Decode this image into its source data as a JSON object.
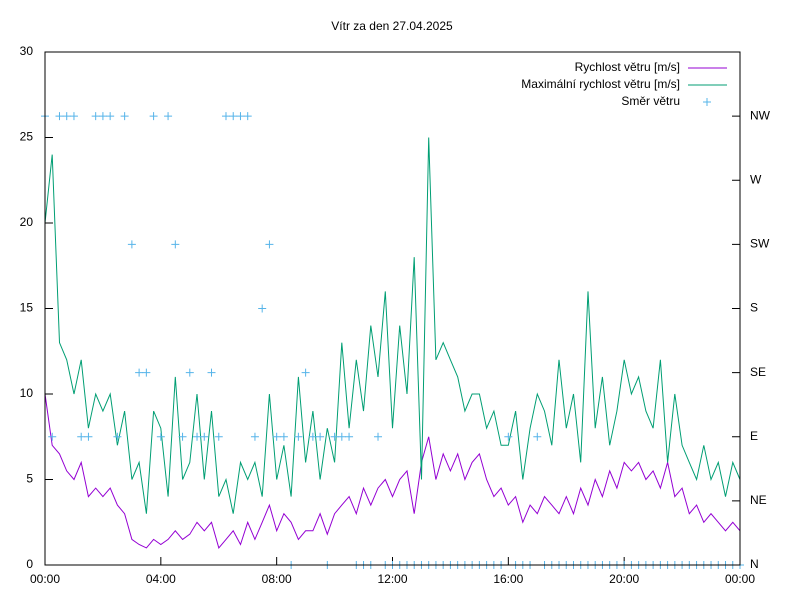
{
  "chart_data": {
    "type": "line",
    "title": "Vítr za den 27.04.2025",
    "x": [
      0,
      0.25,
      0.5,
      0.75,
      1,
      1.25,
      1.5,
      1.75,
      2,
      2.25,
      2.5,
      2.75,
      3,
      3.25,
      3.5,
      3.75,
      4,
      4.25,
      4.5,
      4.75,
      5,
      5.25,
      5.5,
      5.75,
      6,
      6.25,
      6.5,
      6.75,
      7,
      7.25,
      7.5,
      7.75,
      8,
      8.25,
      8.5,
      8.75,
      9,
      9.25,
      9.5,
      9.75,
      10,
      10.25,
      10.5,
      10.75,
      11,
      11.25,
      11.5,
      11.75,
      12,
      12.25,
      12.5,
      12.75,
      13,
      13.25,
      13.5,
      13.75,
      14,
      14.25,
      14.5,
      14.75,
      15,
      15.25,
      15.5,
      15.75,
      16,
      16.25,
      16.5,
      16.75,
      17,
      17.25,
      17.5,
      17.75,
      18,
      18.25,
      18.5,
      18.75,
      19,
      19.25,
      19.5,
      19.75,
      20,
      20.25,
      20.5,
      20.75,
      21,
      21.25,
      21.5,
      21.75,
      22,
      22.25,
      22.5,
      22.75,
      23,
      23.25,
      23.5,
      23.75,
      24
    ],
    "series": [
      {
        "name": "Rychlost větru [m/s]",
        "color": "#9400d3",
        "style": "line",
        "values": [
          10,
          7,
          6.5,
          5.5,
          5,
          6,
          4,
          4.5,
          4,
          4.5,
          3.5,
          3,
          1.5,
          1.2,
          1,
          1.5,
          1.2,
          1.5,
          2,
          1.5,
          1.8,
          2.5,
          2,
          2.5,
          1,
          1.5,
          2,
          1.2,
          2.5,
          1.5,
          2.5,
          3.5,
          2,
          3,
          2.5,
          1.5,
          2,
          2,
          3,
          1.8,
          3,
          3.5,
          4,
          3,
          4.5,
          3.5,
          4.5,
          5,
          4,
          5,
          5.5,
          3,
          6,
          7.5,
          5,
          6.5,
          5.5,
          6.5,
          5,
          6,
          6.5,
          5,
          4,
          4.5,
          3.5,
          4,
          2.5,
          3.5,
          3,
          4,
          3.5,
          3,
          4,
          3,
          4.5,
          3.5,
          5,
          4,
          5.5,
          4.5,
          6,
          5.5,
          6,
          5,
          5.5,
          4.5,
          6,
          4,
          4.5,
          3,
          3.5,
          2.5,
          3,
          2.5,
          2,
          2.5,
          2
        ]
      },
      {
        "name": "Maximální rychlost větru [m/s]",
        "color": "#009e73",
        "style": "line",
        "values": [
          20,
          24,
          13,
          12,
          10,
          12,
          8,
          10,
          9,
          10,
          7,
          9,
          5,
          6,
          3,
          9,
          8,
          4,
          11,
          5,
          6,
          10,
          5,
          9,
          4,
          5,
          3,
          6,
          5,
          6,
          4,
          10,
          5,
          7,
          4,
          11,
          6,
          9,
          5,
          8,
          6,
          13,
          8,
          12,
          9,
          14,
          11,
          16,
          8,
          14,
          10,
          18,
          5,
          25,
          12,
          13,
          12,
          11,
          9,
          10,
          10,
          8,
          9,
          7,
          7,
          9,
          5,
          8,
          10,
          9,
          7,
          12,
          8,
          10,
          6,
          16,
          8,
          11,
          7,
          9,
          12,
          10,
          11,
          9,
          8,
          12,
          6,
          10,
          7,
          6,
          5,
          7,
          5,
          6,
          4,
          6,
          5
        ]
      },
      {
        "name": "Směr větru",
        "color": "#56b4e9",
        "style": "points",
        "axis": "y2",
        "values": [
          7,
          2,
          7,
          7,
          7,
          2,
          2,
          7,
          7,
          7,
          2,
          7,
          5,
          3,
          3,
          7,
          2,
          7,
          5,
          2,
          3,
          2,
          2,
          3,
          2,
          7,
          7,
          7,
          7,
          2,
          4,
          5,
          2,
          2,
          0,
          2,
          3,
          2,
          2,
          0,
          2,
          2,
          2,
          0,
          0,
          0,
          2,
          0,
          0,
          0,
          0,
          0,
          0,
          0,
          0,
          0,
          0,
          0,
          0,
          0,
          0,
          0,
          0,
          0,
          2,
          0,
          0,
          0,
          2,
          0,
          0,
          0,
          0,
          0,
          0,
          0,
          0,
          0,
          0,
          0,
          0,
          0,
          0,
          0,
          0,
          0,
          0,
          0,
          0,
          0,
          0,
          0,
          0,
          0,
          0,
          0,
          0
        ]
      }
    ],
    "xlim": [
      0,
      24
    ],
    "xticks": [
      {
        "value": 0,
        "label": "00:00"
      },
      {
        "value": 4,
        "label": "04:00"
      },
      {
        "value": 8,
        "label": "08:00"
      },
      {
        "value": 12,
        "label": "12:00"
      },
      {
        "value": 16,
        "label": "16:00"
      },
      {
        "value": 20,
        "label": "20:00"
      },
      {
        "value": 24,
        "label": "00:00"
      }
    ],
    "ylim": [
      0,
      30
    ],
    "yticks": [
      0,
      5,
      10,
      15,
      20,
      25,
      30
    ],
    "y2lim": [
      0,
      8
    ],
    "y2ticks": [
      {
        "value": 0,
        "label": "N"
      },
      {
        "value": 1,
        "label": "NE"
      },
      {
        "value": 2,
        "label": "E"
      },
      {
        "value": 3,
        "label": "SE"
      },
      {
        "value": 4,
        "label": "S"
      },
      {
        "value": 5,
        "label": "SW"
      },
      {
        "value": 6,
        "label": "W"
      },
      {
        "value": 7,
        "label": "NW"
      }
    ],
    "legend": "top-right"
  }
}
